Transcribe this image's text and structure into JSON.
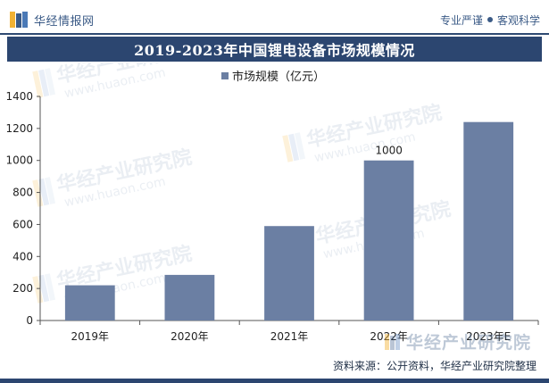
{
  "header": {
    "brand": "华经情报网",
    "tagline_left": "专业严谨",
    "tagline_right": "客观科学"
  },
  "watermark": {
    "text": "华经产业研究院",
    "domain": "www.huaon.com"
  },
  "chart_data": {
    "type": "bar",
    "title": "2019-2023年中国锂电设备市场规模情况",
    "categories": [
      "2019年",
      "2020年",
      "2021年",
      "2022年",
      "2023年E"
    ],
    "series": [
      {
        "name": "市场规模（亿元）",
        "values": [
          220,
          285,
          590,
          1000,
          1240
        ]
      }
    ],
    "data_labels": [
      null,
      null,
      null,
      "1000",
      null
    ],
    "ylim": [
      0,
      1400
    ],
    "yticks": [
      0,
      200,
      400,
      600,
      800,
      1000,
      1200,
      1400
    ],
    "xlabel": "",
    "ylabel": "",
    "legend_position": "top-center",
    "grid": false,
    "bar_color": "#6b7fa3"
  },
  "footer": {
    "source": "资料来源：公开资料，华经产业研究院整理"
  }
}
